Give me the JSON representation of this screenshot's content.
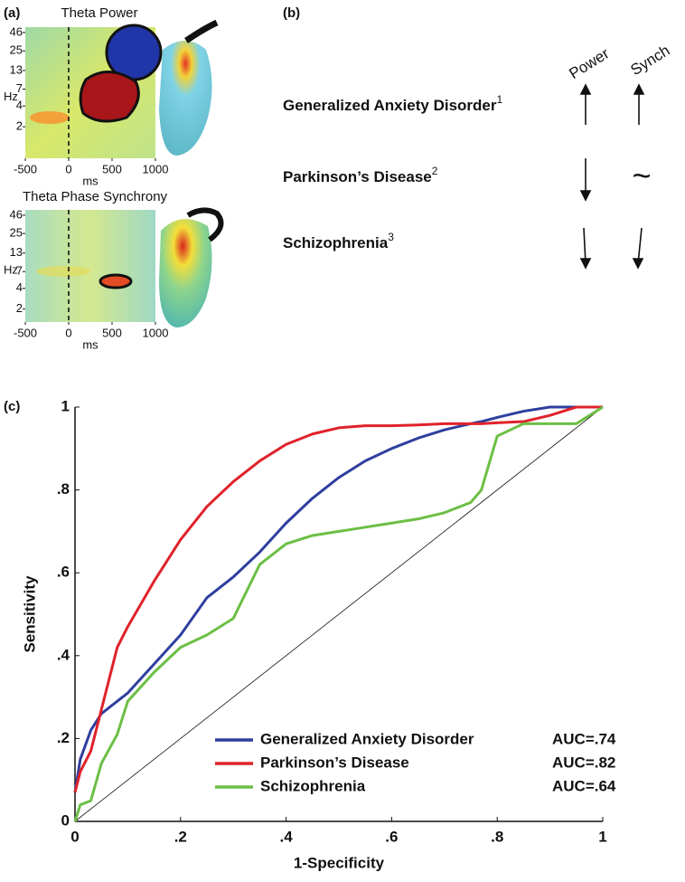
{
  "panel_labels": [
    "(a)",
    "(b)",
    "(c)"
  ],
  "chart_data": [
    {
      "type": "heatmap",
      "title": "Theta Power",
      "xlabel": "ms",
      "ylabel": "Hz",
      "xlim": [
        -500,
        1000
      ],
      "xticks": [
        -500,
        0,
        500,
        1000
      ],
      "ylim": [
        0.7,
        55
      ],
      "yticks": [
        2,
        4,
        7,
        13,
        25,
        46
      ],
      "yscale": "log"
    },
    {
      "type": "heatmap",
      "title": "Theta Phase Synchrony",
      "xlabel": "ms",
      "ylabel": "Hz",
      "xlim": [
        -500,
        1000
      ],
      "xticks": [
        -500,
        0,
        500,
        1000
      ],
      "ylim": [
        1.3,
        55
      ],
      "yticks": [
        2,
        4,
        7,
        13,
        25,
        46
      ],
      "yscale": "log"
    },
    {
      "type": "line",
      "xlabel": "1-Specificity",
      "ylabel": "Sensitivity",
      "xlim": [
        0,
        1
      ],
      "ylim": [
        0,
        1
      ],
      "xticks": [
        0,
        {
          "value": 0.2,
          "label": ".2"
        },
        {
          "value": 0.4,
          "label": ".4"
        },
        {
          "value": 0.6,
          "label": ".6"
        },
        {
          "value": 0.8,
          "label": ".8"
        },
        1
      ],
      "yticks": [
        0,
        {
          "value": 0.2,
          "label": ".2"
        },
        {
          "value": 0.4,
          "label": ".4"
        },
        {
          "value": 0.6,
          "label": ".6"
        },
        {
          "value": 0.8,
          "label": ".8"
        },
        1
      ],
      "x": [
        0,
        0.01,
        0.03,
        0.05,
        0.08,
        0.1,
        0.15,
        0.2,
        0.25,
        0.3,
        0.35,
        0.4,
        0.45,
        0.5,
        0.55,
        0.6,
        0.65,
        0.7,
        0.75,
        0.77,
        0.8,
        0.85,
        0.9,
        0.95,
        1
      ],
      "series": [
        {
          "name": "Generalized Anxiety Disorder",
          "label": "AUC=.74",
          "color": "#2e3f9e",
          "values": [
            0.07,
            0.15,
            0.22,
            0.26,
            0.29,
            0.31,
            0.38,
            0.45,
            0.54,
            0.59,
            0.65,
            0.72,
            0.78,
            0.83,
            0.87,
            0.9,
            0.925,
            0.945,
            0.96,
            0.965,
            0.975,
            0.99,
            1,
            1,
            1
          ]
        },
        {
          "name": "Parkinson’s Disease",
          "label": "AUC=.82",
          "color": "#e0222a",
          "values": [
            0.07,
            0.12,
            0.17,
            0.27,
            0.42,
            0.47,
            0.58,
            0.68,
            0.76,
            0.82,
            0.87,
            0.91,
            0.935,
            0.95,
            0.955,
            0.955,
            0.957,
            0.96,
            0.96,
            0.96,
            0.962,
            0.965,
            0.98,
            1,
            1
          ]
        },
        {
          "name": "Schizophrenia",
          "label": "AUC=.64",
          "color": "#6cbf45",
          "values": [
            0,
            0.04,
            0.05,
            0.14,
            0.21,
            0.29,
            0.36,
            0.42,
            0.45,
            0.49,
            0.62,
            0.67,
            0.69,
            0.7,
            0.71,
            0.72,
            0.73,
            0.745,
            0.77,
            0.8,
            0.93,
            0.96,
            0.96,
            0.96,
            1
          ]
        }
      ]
    }
  ],
  "panel_b": {
    "columns": [
      "Power",
      "Synch"
    ],
    "rows": [
      {
        "name": "Generalized Anxiety Disorder",
        "ref": "1"
      },
      {
        "name": "Parkinson’s Disease",
        "ref": "2",
        "synch": "~"
      },
      {
        "name": "Schizophrenia",
        "ref": "3"
      }
    ]
  }
}
